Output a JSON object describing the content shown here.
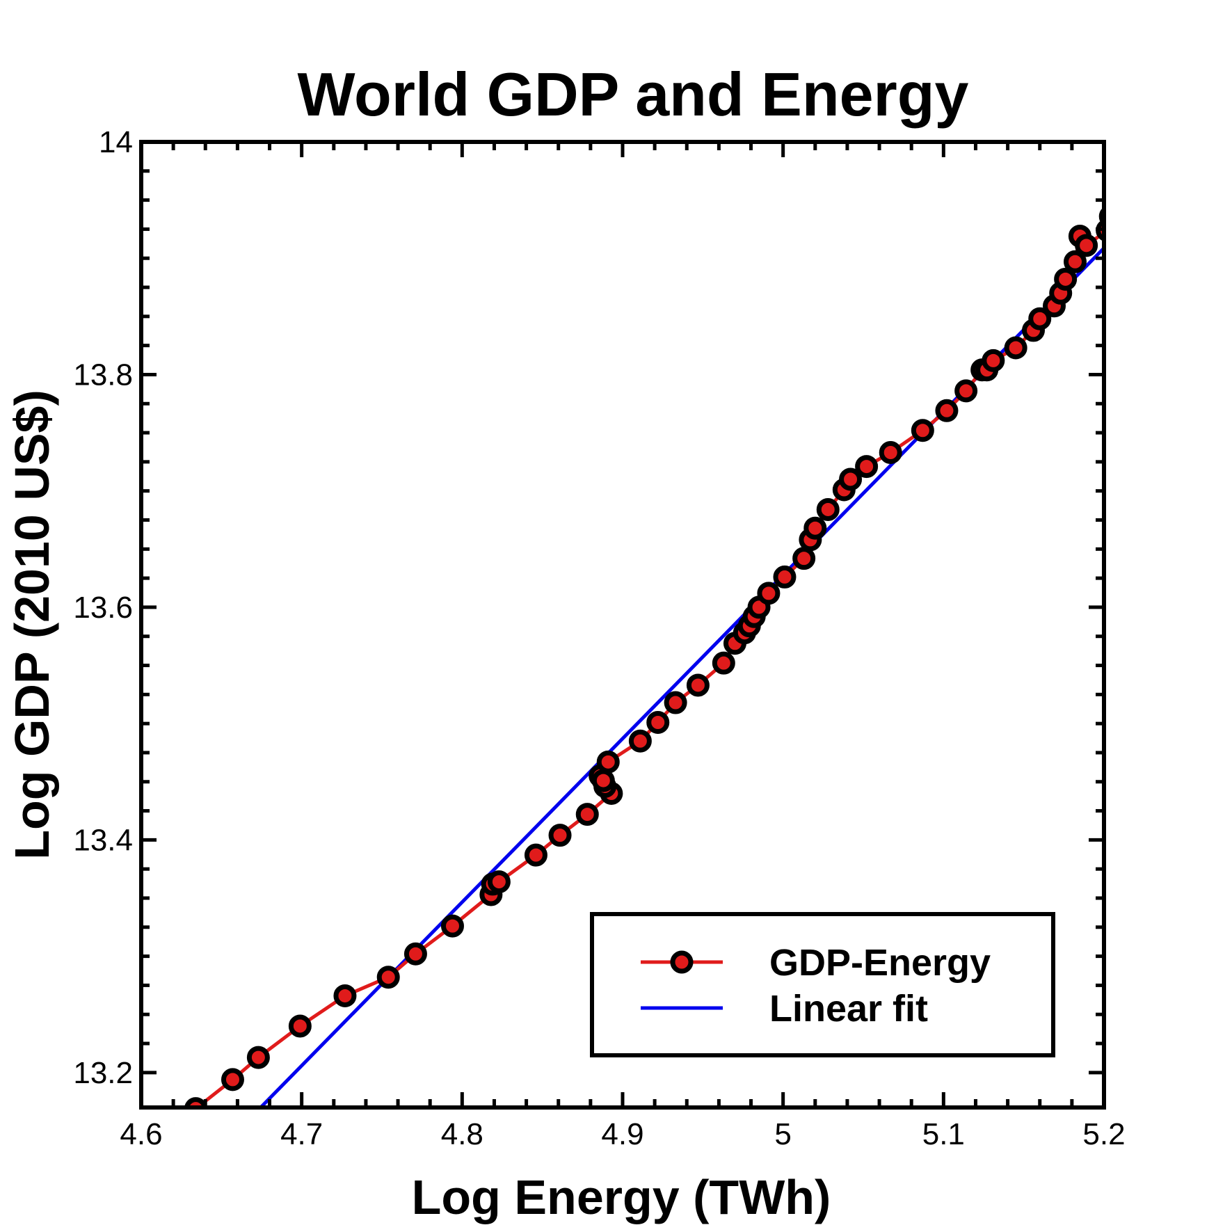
{
  "chart_data": {
    "type": "line",
    "title": "World GDP and Energy",
    "xlabel": "Log Energy (TWh)",
    "ylabel": "Log GDP (2010 US$)",
    "xlim": [
      4.6,
      5.2
    ],
    "ylim": [
      13.17,
      14.0
    ],
    "x_ticks": [
      4.6,
      4.7,
      4.8,
      4.9,
      5.0,
      5.1,
      5.2
    ],
    "x_tick_labels": [
      "4.6",
      "4.7",
      "4.8",
      "4.9",
      "5",
      "5.1",
      "5.2"
    ],
    "y_ticks": [
      13.2,
      13.4,
      13.6,
      13.8,
      14.0
    ],
    "y_tick_labels": [
      "13.2",
      "13.4",
      "13.6",
      "13.8",
      "14"
    ],
    "grid": false,
    "legend_position": "bottom-right",
    "colors": {
      "series": "#e01b1b",
      "fit": "#0000ee",
      "marker_edge": "#000000",
      "frame": "#000000"
    },
    "series": [
      {
        "name": "GDP-Energy",
        "style": "line-with-markers",
        "x": [
          4.634,
          4.657,
          4.673,
          4.699,
          4.727,
          4.754,
          4.771,
          4.794,
          4.818,
          4.819,
          4.823,
          4.846,
          4.861,
          4.878,
          4.893,
          4.889,
          4.886,
          4.888,
          4.891,
          4.911,
          4.922,
          4.933,
          4.947,
          4.963,
          4.97,
          4.976,
          4.979,
          4.982,
          4.985,
          4.991,
          5.001,
          5.013,
          5.017,
          5.02,
          5.028,
          5.038,
          5.042,
          5.052,
          5.067,
          5.087,
          5.102,
          5.114,
          5.124,
          5.127,
          5.131,
          5.145,
          5.156,
          5.16,
          5.169,
          5.173,
          5.176,
          5.182,
          5.185,
          5.189,
          5.202,
          5.204
        ],
        "y": [
          13.169,
          13.194,
          13.213,
          13.24,
          13.266,
          13.282,
          13.302,
          13.326,
          13.353,
          13.362,
          13.364,
          13.387,
          13.404,
          13.422,
          13.44,
          13.446,
          13.455,
          13.451,
          13.467,
          13.485,
          13.501,
          13.518,
          13.533,
          13.552,
          13.569,
          13.578,
          13.584,
          13.592,
          13.6,
          13.612,
          13.626,
          13.642,
          13.658,
          13.668,
          13.684,
          13.701,
          13.71,
          13.721,
          13.733,
          13.752,
          13.769,
          13.786,
          13.804,
          13.804,
          13.812,
          13.823,
          13.838,
          13.848,
          13.859,
          13.87,
          13.882,
          13.897,
          13.919,
          13.911,
          13.924,
          13.936
        ]
      },
      {
        "name": "Linear fit",
        "style": "line",
        "x": [
          4.673,
          5.203
        ],
        "y": [
          13.168,
          13.913
        ]
      }
    ]
  }
}
